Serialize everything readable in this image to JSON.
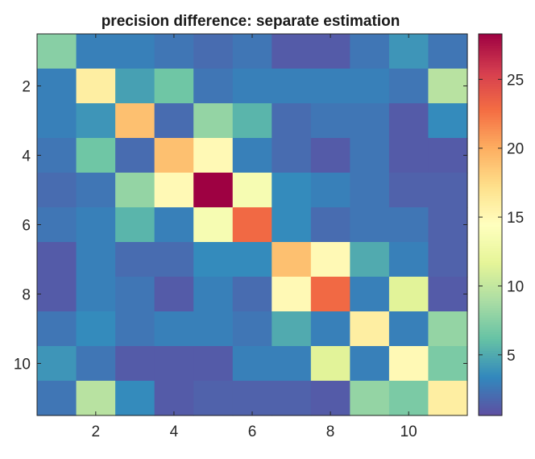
{
  "chart_data": {
    "type": "heatmap",
    "title": "precision difference: separate estimation",
    "xlabel": "",
    "ylabel": "",
    "rows": 11,
    "cols": 11,
    "x_ticks": [
      2,
      4,
      6,
      8,
      10
    ],
    "y_ticks": [
      2,
      4,
      6,
      8,
      10
    ],
    "color_range": [
      0.6,
      28.3
    ],
    "colorbar_ticks": [
      5,
      10,
      15,
      20,
      25
    ],
    "colormap": "spectral",
    "values": [
      [
        7.5,
        3.0,
        3.0,
        2.5,
        2.0,
        2.5,
        1.2,
        1.2,
        2.5,
        4.0,
        2.5
      ],
      [
        3.0,
        16.0,
        4.5,
        6.5,
        2.5,
        3.0,
        3.0,
        3.0,
        3.0,
        2.5,
        9.5
      ],
      [
        3.0,
        4.0,
        19.0,
        2.0,
        8.0,
        5.5,
        2.0,
        2.5,
        2.5,
        1.2,
        3.5
      ],
      [
        2.5,
        6.5,
        2.0,
        19.0,
        15.0,
        3.0,
        2.0,
        1.2,
        2.5,
        1.2,
        1.2
      ],
      [
        2.0,
        2.5,
        8.0,
        15.0,
        28.3,
        13.5,
        3.5,
        3.0,
        2.5,
        1.5,
        1.5
      ],
      [
        2.5,
        3.0,
        5.5,
        3.0,
        13.5,
        23.0,
        3.5,
        2.0,
        2.5,
        2.5,
        1.5
      ],
      [
        1.2,
        3.0,
        2.0,
        2.0,
        3.5,
        3.5,
        19.0,
        15.0,
        5.0,
        3.0,
        1.5
      ],
      [
        1.2,
        3.0,
        2.5,
        1.2,
        3.0,
        2.0,
        15.0,
        23.0,
        3.0,
        11.5,
        1.2
      ],
      [
        2.5,
        3.5,
        2.5,
        3.0,
        3.0,
        2.5,
        5.0,
        3.0,
        16.0,
        3.0,
        8.0
      ],
      [
        4.0,
        2.5,
        1.2,
        1.2,
        1.2,
        3.0,
        3.0,
        11.5,
        3.0,
        15.0,
        7.0
      ],
      [
        2.5,
        9.5,
        3.5,
        1.2,
        1.5,
        1.5,
        1.5,
        1.2,
        8.0,
        7.0,
        16.0
      ]
    ]
  }
}
